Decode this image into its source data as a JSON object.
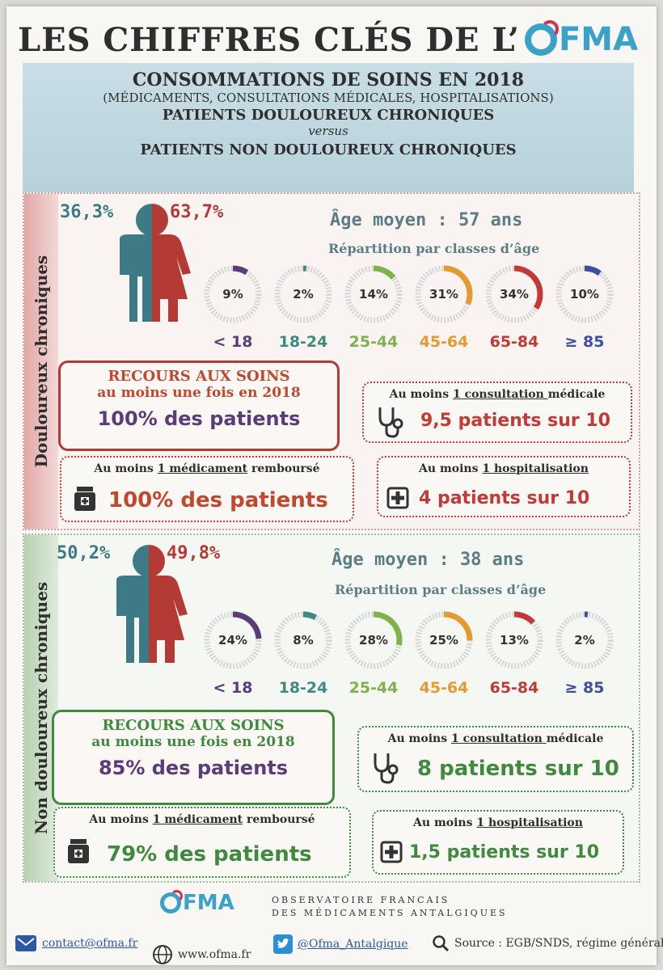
{
  "title": {
    "text": "LES CHIFFRES CLÉS DE L’",
    "logo_text": "FMA"
  },
  "header": {
    "line1": "CONSOMMATIONS DE SOINS EN 2018",
    "line2": "(MÉDICAMENTS, CONSULTATIONS MÉDICALES, HOSPITALISATIONS)",
    "line3": "PATIENTS DOULOUREUX CHRONIQUES",
    "line4": "versus",
    "line5": "PATIENTS NON DOULOUREUX CHRONIQUES"
  },
  "sections": [
    {
      "side_label": "Douloureux chroniques",
      "male_pct": "36,3%",
      "female_pct": "63,7%",
      "age_moyen": "Âge moyen : 57 ans",
      "repartition": "Répartition par classes d’âge",
      "ages": [
        {
          "label": "< 18",
          "pct_text": "9%",
          "value": 9,
          "color": "#5a3c78"
        },
        {
          "label": "18-24",
          "pct_text": "2%",
          "value": 2,
          "color": "#3f8a80"
        },
        {
          "label": "25-44",
          "pct_text": "14%",
          "value": 14,
          "color": "#7fb24a"
        },
        {
          "label": "45-64",
          "pct_text": "31%",
          "value": 31,
          "color": "#e59a2e"
        },
        {
          "label": "65-84",
          "pct_text": "34%",
          "value": 34,
          "color": "#c23a35"
        },
        {
          "label": "≥ 85",
          "pct_text": "10%",
          "value": 10,
          "color": "#3c4fa0"
        }
      ],
      "recours": {
        "title": "RECOURS AUX SOINS",
        "sub": "au moins une fois en 2018",
        "value": "100% des patients"
      },
      "consultation": {
        "pre": "Au moins ",
        "u": "1 consultation ",
        "post": "médicale",
        "value": "9,5 patients sur 10"
      },
      "medicament": {
        "pre": "Au moins ",
        "u": "1 médicament",
        "post": " remboursé",
        "value": "100% des patients"
      },
      "hospitalisation": {
        "pre": "Au moins ",
        "u": "1 hospitalisation",
        "post": "",
        "value": "4 patients sur 10"
      },
      "accent": "#c23a35"
    },
    {
      "side_label": "Non douloureux chroniques",
      "male_pct": "50,2%",
      "female_pct": "49,8%",
      "age_moyen": "Âge moyen : 38 ans",
      "repartition": "Répartition par classes d’âge",
      "ages": [
        {
          "label": "< 18",
          "pct_text": "24%",
          "value": 24,
          "color": "#5a3c78"
        },
        {
          "label": "18-24",
          "pct_text": "8%",
          "value": 8,
          "color": "#3f8a80"
        },
        {
          "label": "25-44",
          "pct_text": "28%",
          "value": 28,
          "color": "#7fb24a"
        },
        {
          "label": "45-64",
          "pct_text": "25%",
          "value": 25,
          "color": "#e59a2e"
        },
        {
          "label": "65-84",
          "pct_text": "13%",
          "value": 13,
          "color": "#c23a35"
        },
        {
          "label": "≥ 85",
          "pct_text": "2%",
          "value": 2,
          "color": "#3c4fa0"
        }
      ],
      "recours": {
        "title": "RECOURS AUX SOINS",
        "sub": "au moins une fois en 2018",
        "value": "85% des patients"
      },
      "consultation": {
        "pre": "Au moins ",
        "u": "1 consultation ",
        "post": "médicale",
        "value": "8 patients sur 10"
      },
      "medicament": {
        "pre": "Au moins ",
        "u": "1 médicament",
        "post": " remboursé",
        "value": "79% des patients"
      },
      "hospitalisation": {
        "pre": "Au moins ",
        "u": "1 hospitalisation",
        "post": "",
        "value": "1,5 patients sur 10"
      },
      "accent": "#3f8a3f"
    }
  ],
  "footer": {
    "logo_text": "FMA",
    "obs_line1": "OBSERVATOIRE FRANCAIS",
    "obs_line2": "DES MÉDICAMENTS ANTALGIQUES",
    "email": "contact@ofma.fr",
    "web": "www.ofma.fr",
    "twitter": "@Ofma_Antalgique",
    "source": "Source : EGB/SNDS, régime général"
  },
  "colors": {
    "male": "#3d7a85",
    "female": "#b33a35",
    "recours_border_1": "#b33a35",
    "recours_border_2": "#3f8a3f"
  }
}
